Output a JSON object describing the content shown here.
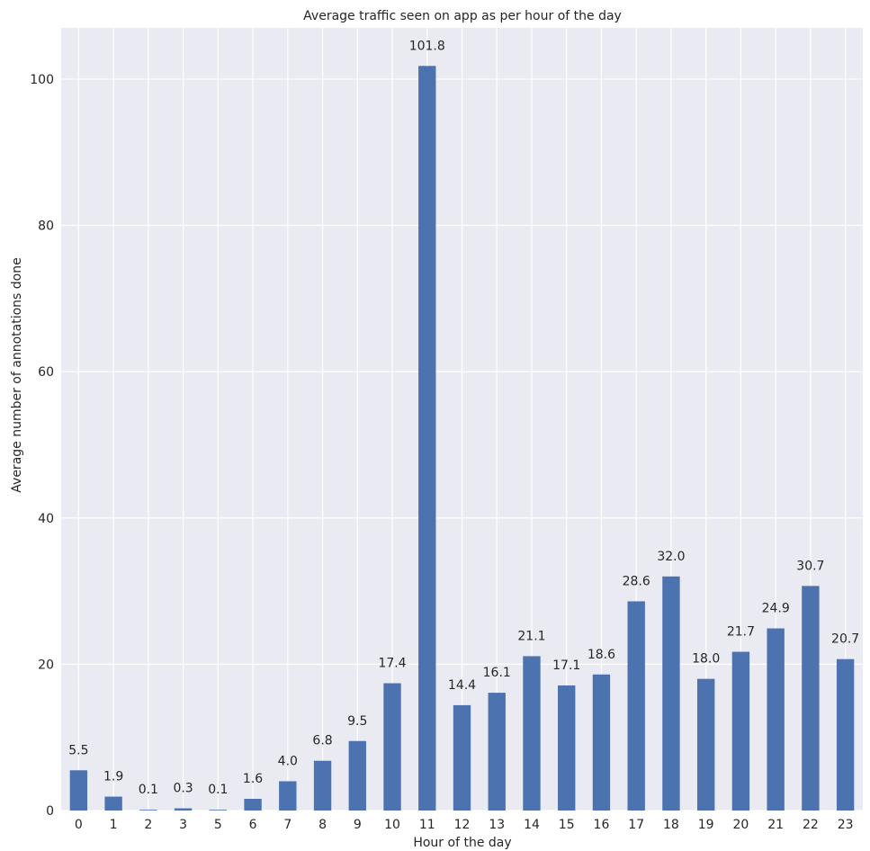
{
  "chart_data": {
    "type": "bar",
    "title": "Average traffic seen on app as per hour of the day",
    "xlabel": "Hour of the day",
    "ylabel": "Average number of annotations done",
    "categories": [
      "0",
      "1",
      "2",
      "3",
      "5",
      "6",
      "7",
      "8",
      "9",
      "10",
      "11",
      "12",
      "13",
      "14",
      "15",
      "16",
      "17",
      "18",
      "19",
      "20",
      "21",
      "22",
      "23"
    ],
    "values": [
      5.5,
      1.9,
      0.1,
      0.3,
      0.1,
      1.6,
      4.0,
      6.8,
      9.5,
      17.4,
      101.8,
      14.4,
      16.1,
      21.1,
      17.1,
      18.6,
      28.6,
      32.0,
      18.0,
      21.7,
      24.9,
      30.7,
      20.7
    ],
    "data_labels": [
      "5.5",
      "1.9",
      "0.1",
      "0.3",
      "0.1",
      "1.6",
      "4.0",
      "6.8",
      "9.5",
      "17.4",
      "101.8",
      "14.4",
      "16.1",
      "21.1",
      "17.1",
      "18.6",
      "28.6",
      "32.0",
      "18.0",
      "21.7",
      "24.9",
      "30.7",
      "20.7"
    ],
    "yticks": [
      0,
      20,
      40,
      60,
      80,
      100
    ],
    "ylim": [
      0,
      107
    ],
    "grid": true,
    "colors": {
      "bar": "#4c72b0",
      "background": "#eaeaf2",
      "grid": "#ffffff"
    }
  }
}
